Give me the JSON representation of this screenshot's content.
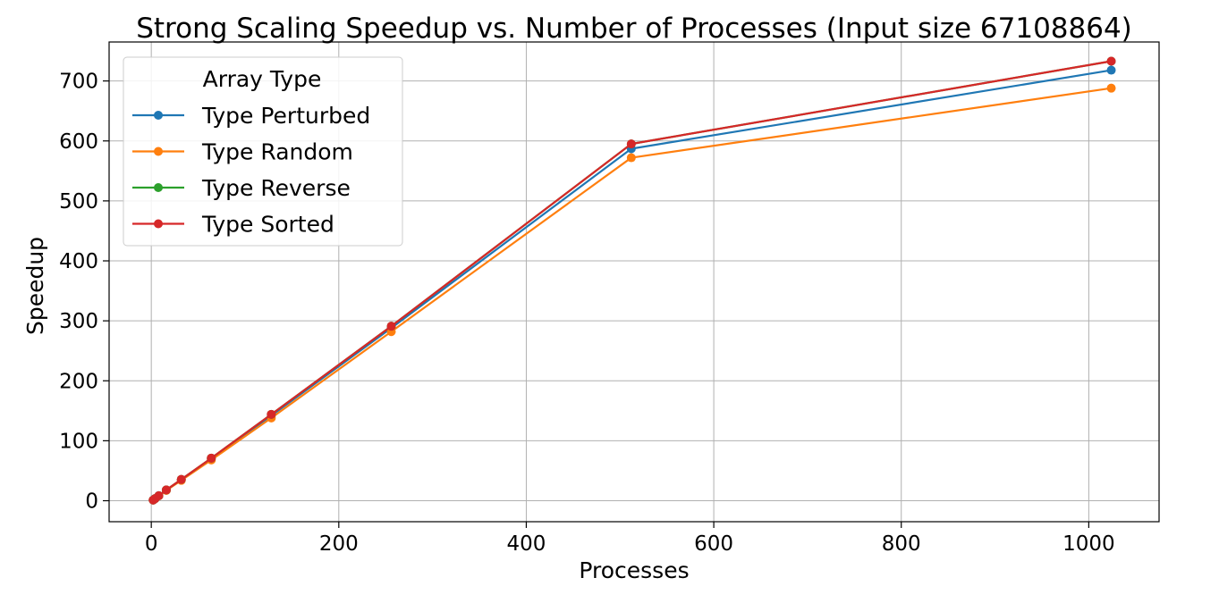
{
  "chart_data": {
    "type": "line",
    "title": "Strong Scaling Speedup vs. Number of Processes (Input size 67108864)",
    "xlabel": "Processes",
    "ylabel": "Speedup",
    "xlim": [
      -45,
      1075
    ],
    "ylim": [
      -35,
      765
    ],
    "xticks": [
      0,
      200,
      400,
      600,
      800,
      1000
    ],
    "yticks": [
      0,
      100,
      200,
      300,
      400,
      500,
      600,
      700
    ],
    "grid": true,
    "legend": {
      "title": "Array Type",
      "position": "top-left"
    },
    "x": [
      2,
      4,
      8,
      16,
      32,
      64,
      128,
      256,
      512,
      1024
    ],
    "series": [
      {
        "name": "Type Perturbed",
        "color": "#1f77b4",
        "values": [
          1.1,
          3.5,
          8.3,
          17.7,
          35,
          70,
          142,
          288,
          587,
          718
        ]
      },
      {
        "name": "Type Random",
        "color": "#ff7f0e",
        "values": [
          1.1,
          3.4,
          8.1,
          17.2,
          34,
          68,
          138,
          282,
          572,
          688
        ]
      },
      {
        "name": "Type Reverse",
        "color": "#2ca02c",
        "values": [
          1.1,
          3.5,
          8.4,
          18,
          35.5,
          71,
          144,
          291,
          595,
          733
        ]
      },
      {
        "name": "Type Sorted",
        "color": "#d62728",
        "values": [
          1.1,
          3.5,
          8.4,
          18,
          35.5,
          71,
          144,
          291,
          595,
          733
        ]
      }
    ]
  }
}
